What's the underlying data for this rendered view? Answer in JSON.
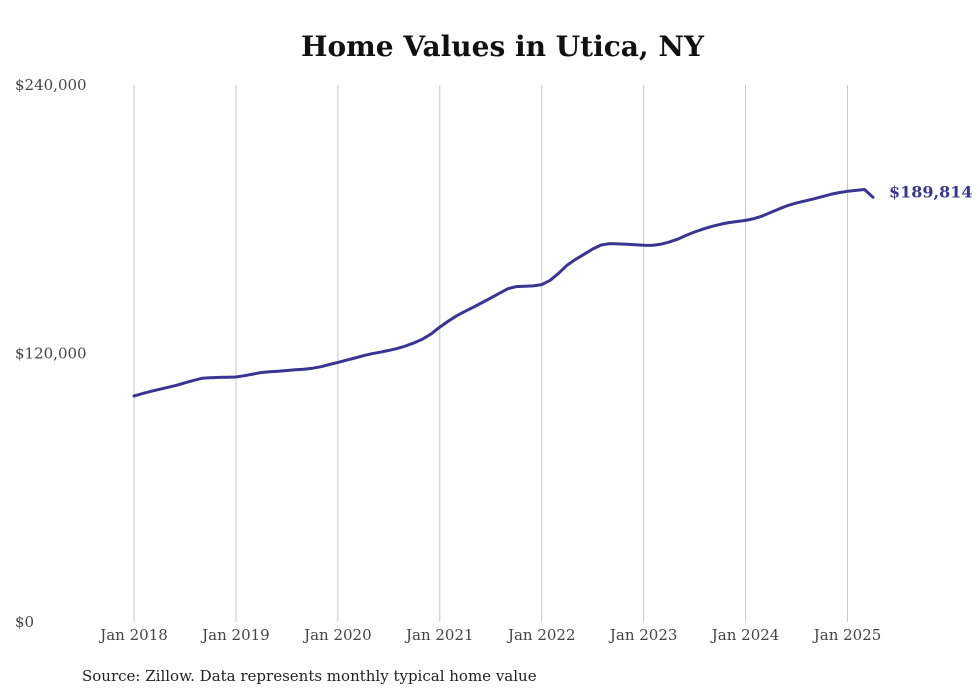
{
  "chart_data": {
    "type": "line",
    "title": "Home Values in Utica, NY",
    "source": "Source: Zillow. Data represents monthly typical home value",
    "xlabel": "",
    "ylabel": "",
    "x_ticks": [
      "Jan 2018",
      "Jan 2019",
      "Jan 2020",
      "Jan 2021",
      "Jan 2022",
      "Jan 2023",
      "Jan 2024",
      "Jan 2025"
    ],
    "y_ticks": [
      "$0",
      "$120,000",
      "$240,000"
    ],
    "ylim": [
      0,
      240000
    ],
    "xlim": [
      "2018-01",
      "2025-04"
    ],
    "grid": "vertical",
    "series_color": "#3a3592",
    "end_label": "$189,814",
    "series": [
      {
        "x": [
          "2018-01",
          "2018-02",
          "2018-03",
          "2018-04",
          "2018-05",
          "2018-06",
          "2018-07",
          "2018-08",
          "2018-09",
          "2018-10",
          "2018-11",
          "2018-12",
          "2019-01",
          "2019-02",
          "2019-03",
          "2019-04",
          "2019-05",
          "2019-06",
          "2019-07",
          "2019-08",
          "2019-09",
          "2019-10",
          "2019-11",
          "2019-12",
          "2020-01",
          "2020-02",
          "2020-03",
          "2020-04",
          "2020-05",
          "2020-06",
          "2020-07",
          "2020-08",
          "2020-09",
          "2020-10",
          "2020-11",
          "2020-12",
          "2021-01",
          "2021-02",
          "2021-03",
          "2021-04",
          "2021-05",
          "2021-06",
          "2021-07",
          "2021-08",
          "2021-09",
          "2021-10",
          "2021-11",
          "2021-12",
          "2022-01",
          "2022-02",
          "2022-03",
          "2022-04",
          "2022-05",
          "2022-06",
          "2022-07",
          "2022-08",
          "2022-09",
          "2022-10",
          "2022-11",
          "2022-12",
          "2023-01",
          "2023-02",
          "2023-03",
          "2023-04",
          "2023-05",
          "2023-06",
          "2023-07",
          "2023-08",
          "2023-09",
          "2023-10",
          "2023-11",
          "2023-12",
          "2024-01",
          "2024-02",
          "2024-03",
          "2024-04",
          "2024-05",
          "2024-06",
          "2024-07",
          "2024-08",
          "2024-09",
          "2024-10",
          "2024-11",
          "2024-12",
          "2025-01",
          "2025-02",
          "2025-03",
          "2025-04"
        ],
        "values": [
          101000,
          102100,
          103100,
          104000,
          104900,
          105800,
          106900,
          108000,
          108900,
          109200,
          109300,
          109400,
          109500,
          110100,
          110800,
          111500,
          111800,
          112100,
          112400,
          112700,
          113000,
          113400,
          114100,
          115100,
          116000,
          117000,
          118000,
          119000,
          119900,
          120600,
          121400,
          122300,
          123400,
          124800,
          126500,
          128800,
          131800,
          134500,
          136900,
          138900,
          140800,
          142800,
          144800,
          146900,
          148900,
          149900,
          150100,
          150200,
          150800,
          152700,
          155900,
          159500,
          162100,
          164400,
          166700,
          168500,
          169100,
          169000,
          168800,
          168600,
          168400,
          168300,
          168800,
          169800,
          171100,
          172800,
          174300,
          175600,
          176800,
          177700,
          178500,
          179000,
          179500,
          180300,
          181500,
          183100,
          184700,
          186200,
          187300,
          188200,
          189100,
          190100,
          191100,
          191900,
          192500,
          192900,
          193300,
          189814
        ]
      }
    ]
  }
}
